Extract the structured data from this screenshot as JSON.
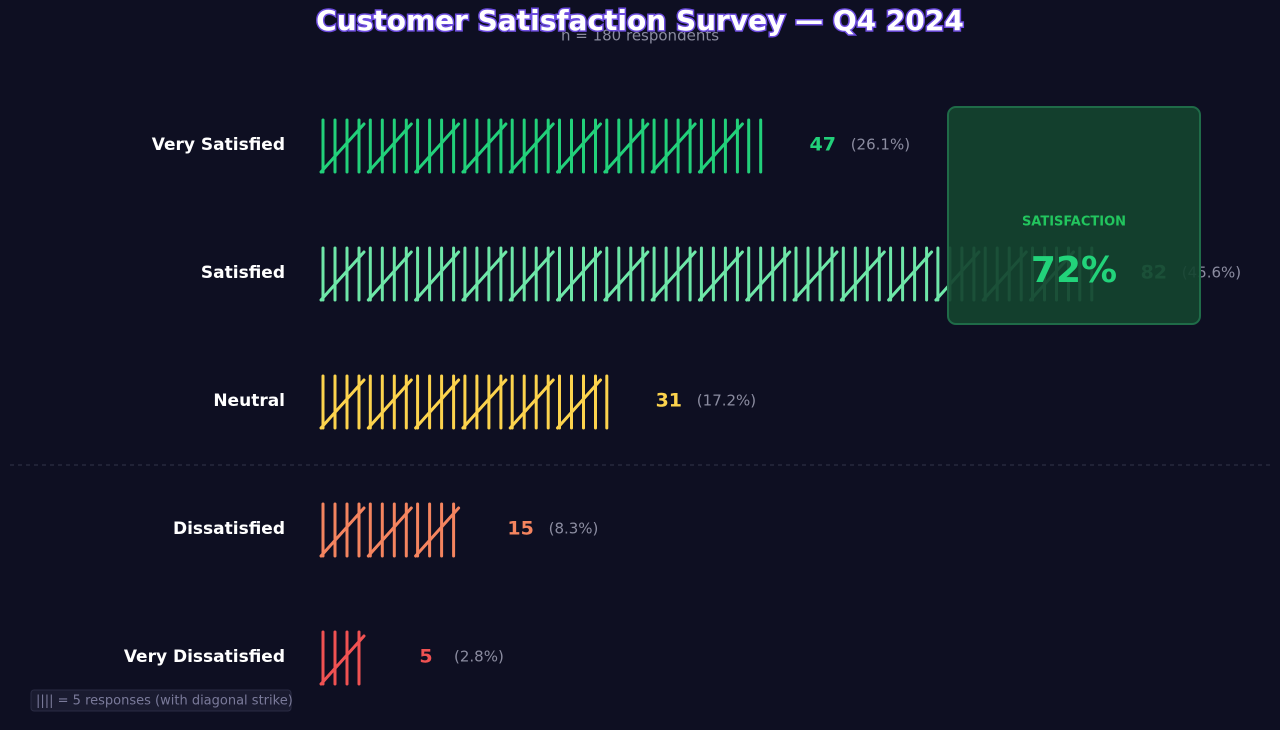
{
  "chart_data": {
    "type": "tally",
    "title": "Customer Satisfaction Survey — Q4 2024",
    "subtitle": "n = 180 respondents",
    "categories": [
      "Very Satisfied",
      "Satisfied",
      "Neutral",
      "Dissatisfied",
      "Very Dissatisfied"
    ],
    "values": [
      47,
      82,
      31,
      15,
      5
    ],
    "percent_labels": [
      "(26.1%)",
      "(45.6%)",
      "(17.2%)",
      "(8.3%)",
      "(2.8%)"
    ],
    "colors": [
      "#22d07a",
      "#6ee7a8",
      "#fcd34d",
      "#f4845f",
      "#f05252"
    ],
    "tally_group": 5,
    "kpi": {
      "label": "SATISFACTION",
      "value_label": "72%"
    },
    "legend_note": "|||| = 5 responses (with diagonal strike)"
  }
}
